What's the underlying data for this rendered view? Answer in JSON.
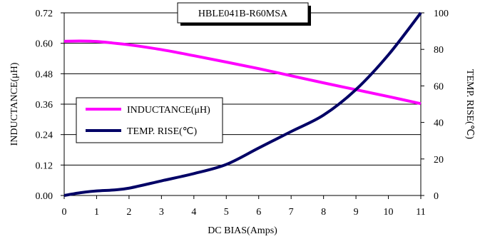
{
  "chart_data": {
    "type": "line",
    "title": "HBLE041B-R60MSA",
    "xlabel": "DC BIAS(Amps)",
    "ylabel_left": "INDUCTANCE(μH)",
    "ylabel_right": "TEMP. RISE(℃)",
    "xlim": [
      0,
      11
    ],
    "ylim_left": [
      0,
      0.72
    ],
    "ylim_right": [
      0,
      100
    ],
    "x_ticks": [
      "0",
      "1",
      "2",
      "3",
      "4",
      "5",
      "6",
      "7",
      "8",
      "9",
      "10",
      "11"
    ],
    "y_left_ticks": [
      "0.00",
      "0.12",
      "0.24",
      "0.36",
      "0.48",
      "0.60",
      "0.72"
    ],
    "y_right_ticks": [
      "0",
      "20",
      "40",
      "60",
      "80",
      "100"
    ],
    "grid": "horizontal",
    "legend_position": "center-left",
    "series": [
      {
        "name": "INDUCTANCE(μH)",
        "axis": "left",
        "color": "#ff00ff",
        "x": [
          0,
          0.5,
          1,
          1.5,
          2,
          3,
          4,
          5,
          6,
          7,
          8,
          9,
          10,
          11
        ],
        "y": [
          0.608,
          0.609,
          0.607,
          0.601,
          0.594,
          0.575,
          0.551,
          0.526,
          0.5,
          0.472,
          0.444,
          0.417,
          0.39,
          0.362
        ]
      },
      {
        "name": "TEMP. RISE(℃)",
        "axis": "right",
        "color": "#000066",
        "x": [
          0,
          0.5,
          1,
          1.5,
          2,
          3,
          4,
          5,
          6,
          7,
          8,
          9,
          10,
          11
        ],
        "y": [
          0,
          1.5,
          2.5,
          3,
          4,
          8,
          12,
          17,
          26,
          35,
          44,
          58,
          77,
          100
        ]
      }
    ]
  }
}
